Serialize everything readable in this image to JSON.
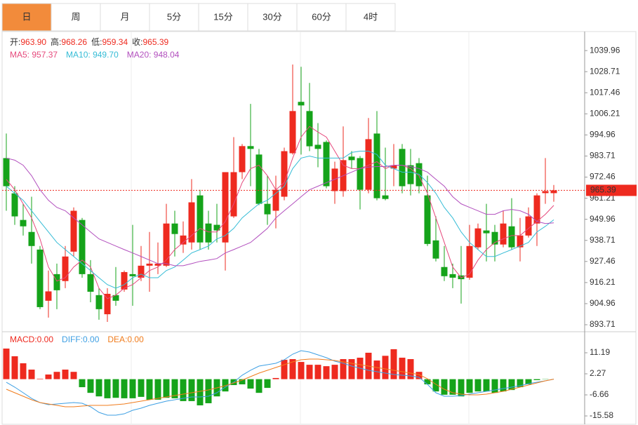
{
  "tabs": [
    "日",
    "周",
    "月",
    "5分",
    "15分",
    "30分",
    "60分",
    "4时"
  ],
  "active_tab": 0,
  "chart_data": [
    {
      "type": "candlestick",
      "info": [
        {
          "name": "开:",
          "value": "963.90"
        },
        {
          "name": "高:",
          "value": "968.26"
        },
        {
          "name": "低:",
          "value": "959.34"
        },
        {
          "name": "收:",
          "value": "965.39"
        }
      ],
      "up_color": "#ee2a1f",
      "down_color": "#15a31a",
      "ylim": [
        891.1,
        1050.1
      ],
      "yticks": [
        1039.96,
        1028.71,
        1017.46,
        1006.21,
        994.96,
        983.71,
        972.46,
        961.21,
        949.96,
        938.71,
        927.46,
        916.21,
        904.96,
        893.71
      ],
      "last_label": "965.39",
      "open": [
        982.6,
        963.8,
        949.6,
        943.2,
        933.8,
        906.5,
        920.7,
        917.0,
        932.7,
        949.6,
        920.7,
        909.5,
        899.3,
        909.5,
        912.5,
        920.7,
        918.8,
        925.2,
        925.2,
        925.2,
        947.7,
        936.5,
        937.6,
        962.7,
        947.7,
        947.0,
        937.6,
        951.5,
        975.1,
        989.0,
        984.5,
        958.2,
        954.5,
        962.0,
        985.2,
        1012.6,
        1007.7,
        989.7,
        991.2,
        965.0,
        965.0,
        983.4,
        982.6,
        965.7,
        995.7,
        962.7,
        977.0,
        987.5,
        978.8,
        979.9,
        962.7,
        938.7,
        924.5,
        920.7,
        920.0,
        918.8,
        935.0,
        944.0,
        943.2,
        936.5,
        946.2,
        935.0,
        941.3,
        947.7,
        963.9,
        963.9
      ],
      "high": [
        995.7,
        967.6,
        958.2,
        962.0,
        935.7,
        922.6,
        926.3,
        935.7,
        956.3,
        950.7,
        928.2,
        913.2,
        913.2,
        924.5,
        922.6,
        947.0,
        935.7,
        943.2,
        937.6,
        958.2,
        954.5,
        948.8,
        971.4,
        965.7,
        954.5,
        958.2,
        975.1,
        993.8,
        990.1,
        1011.5,
        987.5,
        973.2,
        973.2,
        988.2,
        1032.5,
        1031.3,
        1022.7,
        1001.3,
        992.0,
        980.7,
        999.5,
        986.3,
        983.7,
        1004.0,
        1007.7,
        988.2,
        990.1,
        990.1,
        987.5,
        982.6,
        973.2,
        951.5,
        935.7,
        926.3,
        935.7,
        947.0,
        947.7,
        958.2,
        947.0,
        954.5,
        961.2,
        950.7,
        956.3,
        963.8,
        982.6,
        968.26
      ],
      "low": [
        954.5,
        947.0,
        941.3,
        926.3,
        902.0,
        897.5,
        902.0,
        913.2,
        930.1,
        918.8,
        905.7,
        896.4,
        895.2,
        903.8,
        911.3,
        903.8,
        917.0,
        911.3,
        920.7,
        924.5,
        930.1,
        932.0,
        933.8,
        933.8,
        933.8,
        937.6,
        922.6,
        950.7,
        971.4,
        967.6,
        957.5,
        947.0,
        945.1,
        960.1,
        984.5,
        984.5,
        986.3,
        977.7,
        966.5,
        958.2,
        962.0,
        977.0,
        955.2,
        963.8,
        960.1,
        960.1,
        967.6,
        963.8,
        962.7,
        963.8,
        935.7,
        927.5,
        917.0,
        913.2,
        905.0,
        917.7,
        933.8,
        927.5,
        927.5,
        935.0,
        933.8,
        927.5,
        940.2,
        935.7,
        958.2,
        959.34
      ],
      "close": [
        967.6,
        951.5,
        946.2,
        935.7,
        903.1,
        911.5,
        912.1,
        930.1,
        954.5,
        920.7,
        911.3,
        902.0,
        910.2,
        906.5,
        921.8,
        919.6,
        925.2,
        926.3,
        926.3,
        947.7,
        942.1,
        941.3,
        959.0,
        937.6,
        937.6,
        944.0,
        975.1,
        975.1,
        989.0,
        987.5,
        958.2,
        952.6,
        965.7,
        986.3,
        1007.7,
        1010.7,
        988.9,
        987.5,
        967.6,
        977.0,
        981.5,
        981.5,
        965.7,
        992.7,
        961.2,
        960.8,
        978.8,
        967.6,
        968.7,
        967.6,
        936.8,
        929.0,
        919.6,
        918.8,
        918.0,
        935.7,
        945.1,
        942.5,
        936.5,
        947.7,
        935.0,
        941.3,
        951.5,
        962.7,
        965.0,
        965.39
      ],
      "ma": [
        {
          "name": "MA5: ",
          "label": "957.37",
          "color": "#e6497c",
          "values": [
            971.3,
            965.7,
            958.2,
            950.7,
            939.5,
            924.5,
            917.0,
            918.8,
            924.5,
            928.2,
            924.5,
            913.2,
            907.6,
            909.5,
            913.2,
            915.1,
            918.8,
            922.6,
            924.5,
            928.2,
            933.8,
            937.6,
            941.3,
            945.1,
            943.2,
            943.2,
            948.8,
            958.2,
            969.5,
            977.0,
            978.8,
            973.2,
            965.7,
            969.5,
            982.6,
            993.8,
            999.5,
            996.5,
            993.8,
            986.3,
            978.8,
            977.0,
            977.0,
            978.8,
            980.7,
            977.0,
            978.8,
            978.8,
            977.0,
            973.2,
            963.8,
            950.7,
            937.6,
            924.5,
            918.8,
            920.7,
            928.2,
            933.8,
            937.6,
            939.5,
            941.3,
            941.3,
            945.1,
            948.8,
            952.6,
            957.37
          ]
        },
        {
          "name": "MA10: ",
          "label": "949.70",
          "color": "#35bcd6",
          "values": [
            967.6,
            963.8,
            960.1,
            954.5,
            948.8,
            943.2,
            937.6,
            933.8,
            930.1,
            926.3,
            922.6,
            918.8,
            915.1,
            913.2,
            915.1,
            918.8,
            920.7,
            918.8,
            918.8,
            922.6,
            924.5,
            928.2,
            932.0,
            933.8,
            935.7,
            939.5,
            941.3,
            945.1,
            950.7,
            954.5,
            958.2,
            960.1,
            963.8,
            967.6,
            977.0,
            982.6,
            983.7,
            982.6,
            982.6,
            982.6,
            982.6,
            985.6,
            986.3,
            986.3,
            984.5,
            978.8,
            977.0,
            975.1,
            975.1,
            974.0,
            969.5,
            963.8,
            956.3,
            950.7,
            943.2,
            937.6,
            933.8,
            930.1,
            930.1,
            932.0,
            933.8,
            935.7,
            937.6,
            943.2,
            946.2,
            949.7
          ]
        },
        {
          "name": "MA20: ",
          "label": "948.04",
          "color": "#b24fbe",
          "values": [
            982.6,
            981.5,
            978.8,
            973.2,
            965.7,
            960.1,
            956.3,
            954.5,
            950.7,
            947.0,
            943.2,
            939.5,
            937.6,
            935.7,
            933.8,
            932.0,
            930.1,
            928.2,
            926.3,
            926.3,
            925.2,
            925.2,
            926.3,
            927.5,
            928.2,
            929.0,
            932.0,
            933.8,
            935.7,
            937.6,
            941.3,
            945.1,
            950.7,
            954.5,
            958.2,
            962.0,
            965.7,
            967.6,
            969.5,
            971.3,
            973.2,
            975.1,
            977.0,
            977.8,
            978.1,
            978.1,
            978.8,
            978.8,
            978.1,
            977.0,
            975.1,
            971.3,
            967.6,
            962.0,
            958.2,
            956.3,
            954.5,
            952.6,
            952.6,
            954.5,
            955.2,
            954.5,
            952.6,
            948.8,
            947.7,
            948.04
          ]
        }
      ]
    },
    {
      "type": "macd",
      "ylim": [
        -19.13,
        19.51
      ],
      "yticks": [
        11.19,
        2.27,
        -6.66,
        -15.58
      ],
      "up_color": "#ee2a1f",
      "down_color": "#15a31a",
      "histogram": {
        "name": "MACD:",
        "label": "0.00",
        "color": "#ee2a1f",
        "values": [
          12.97,
          9.7,
          6.73,
          4.05,
          0.2,
          1.97,
          3.1,
          4.05,
          3.1,
          -3.4,
          -5.8,
          -7.3,
          -8.1,
          -7.9,
          -8.1,
          -8.1,
          -7.5,
          -8.7,
          -8.7,
          -7.9,
          -8.1,
          -9.3,
          -9.3,
          -11.1,
          -10.2,
          -7.3,
          -5.2,
          -2.5,
          -2.2,
          -4.0,
          -5.8,
          -3.7,
          0.5,
          8.2,
          8.5,
          7.3,
          6.1,
          6.1,
          5.5,
          6.1,
          8.5,
          8.5,
          9.1,
          11.2,
          7.9,
          9.9,
          12.7,
          9.1,
          8.5,
          3.1,
          -2.2,
          -5.2,
          -6.6,
          -6.6,
          -7.3,
          -5.8,
          -5.2,
          -5.2,
          -5.8,
          -5.2,
          -4.6,
          -3.4,
          -2.2,
          -0.4,
          -0.1,
          0.0
        ]
      },
      "lines": [
        {
          "name": "DIFF:",
          "label": "0.00",
          "color": "#3d9fe3",
          "values": [
            -1.3,
            -3.38,
            -5.76,
            -8.14,
            -9.92,
            -10.81,
            -10.51,
            -10.22,
            -9.92,
            -10.22,
            -11.7,
            -14.08,
            -15.27,
            -15.27,
            -14.68,
            -13.19,
            -12.3,
            -11.11,
            -10.22,
            -9.33,
            -8.73,
            -8.14,
            -7.54,
            -7.54,
            -7.24,
            -5.76,
            -3.38,
            -1.3,
            1.67,
            3.76,
            5.54,
            6.13,
            6.73,
            8.22,
            10.59,
            12.08,
            11.48,
            10.3,
            9.11,
            7.62,
            6.73,
            5.54,
            4.65,
            3.76,
            3.16,
            2.57,
            1.97,
            1.67,
            1.38,
            0.78,
            -2.19,
            -5.76,
            -7.24,
            -7.24,
            -6.94,
            -6.35,
            -5.76,
            -5.16,
            -4.57,
            -3.97,
            -3.38,
            -2.79,
            -1.89,
            -1.3,
            -0.7,
            0
          ]
        },
        {
          "name": "DEA:",
          "label": "0.00",
          "color": "#f07c1c",
          "values": [
            -4.27,
            -5.76,
            -7.24,
            -8.73,
            -9.92,
            -10.51,
            -11.11,
            -11.7,
            -11.7,
            -11.4,
            -11.11,
            -11.11,
            -11.11,
            -10.81,
            -10.51,
            -9.92,
            -9.33,
            -8.73,
            -8.14,
            -7.54,
            -6.94,
            -6.35,
            -5.76,
            -5.16,
            -4.57,
            -3.68,
            -2.79,
            -1.6,
            -0.41,
            1.08,
            2.57,
            3.76,
            4.94,
            6.13,
            7.32,
            8.22,
            8.51,
            8.51,
            8.22,
            7.92,
            7.32,
            6.73,
            6.13,
            5.54,
            4.94,
            4.35,
            3.76,
            3.16,
            2.57,
            1.97,
            0.19,
            -2.19,
            -4.27,
            -5.76,
            -6.35,
            -6.65,
            -6.65,
            -6.35,
            -5.76,
            -5.16,
            -4.27,
            -3.38,
            -2.49,
            -1.6,
            -0.7,
            0
          ]
        }
      ]
    }
  ]
}
